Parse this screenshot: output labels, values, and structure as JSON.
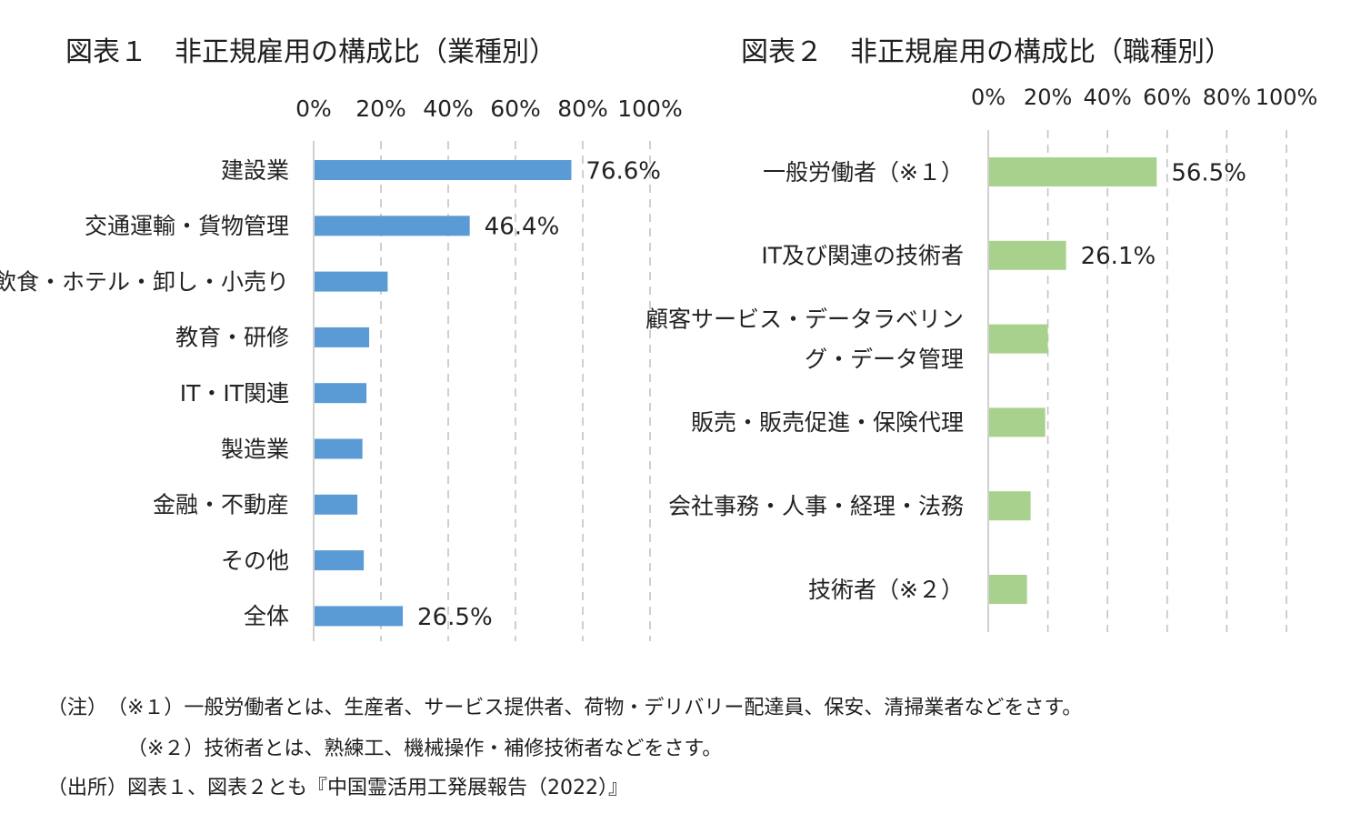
{
  "colors": {
    "chart1_bar": "#5b9bd5",
    "chart2_bar": "#a9d18e",
    "grid": "#bfbfbf",
    "axis": "#d0d0d0"
  },
  "chart_data": [
    {
      "type": "bar",
      "orientation": "horizontal",
      "title": "図表１　非正規雇用の構成比（業種別）",
      "xlim": [
        0,
        100
      ],
      "xticks": [
        "0%",
        "20%",
        "40%",
        "60%",
        "80%",
        "100%"
      ],
      "categories": [
        "建設業",
        "交通運輸・貨物管理",
        "飲食・ホテル・卸し・小売り",
        "教育・研修",
        "IT・IT関連",
        "製造業",
        "金融・不動産",
        "その他",
        "全体"
      ],
      "values": [
        76.6,
        46.4,
        22,
        16.5,
        15.7,
        14.5,
        13,
        14.9,
        26.5
      ],
      "data_labels": [
        "76.6%",
        "46.4%",
        "",
        "",
        "",
        "",
        "",
        "",
        "26.5%"
      ],
      "grid": true
    },
    {
      "type": "bar",
      "orientation": "horizontal",
      "title": "図表２　非正規雇用の構成比（職種別）",
      "xlim": [
        0,
        100
      ],
      "xticks": [
        "0%",
        "20%",
        "40%",
        "60%",
        "80%",
        "100%"
      ],
      "categories": [
        [
          "一般労働者（※１）"
        ],
        [
          "IT及び関連の技術者"
        ],
        [
          "顧客サービス・データラベリン",
          "グ・データ管理"
        ],
        [
          "販売・販売促進・保険代理"
        ],
        [
          "会社事務・人事・経理・法務"
        ],
        [
          "技術者（※２）"
        ]
      ],
      "values": [
        56.5,
        26.1,
        20,
        19.1,
        14.2,
        13
      ],
      "data_labels": [
        "56.5%",
        "26.1%",
        "",
        "",
        "",
        ""
      ],
      "grid": true
    }
  ],
  "notes": {
    "line1": "（注）　（※１）一般労働者とは、生産者、サービス提供者、荷物・デリバリー配達員、保安、清掃業者などをさす。",
    "line2": "（※２）技術者とは、熟練工、機械操作・補修技術者などをさす。",
    "line3": "（出所）図表１、図表２とも『中国霊活用工発展報告（2022）』"
  }
}
